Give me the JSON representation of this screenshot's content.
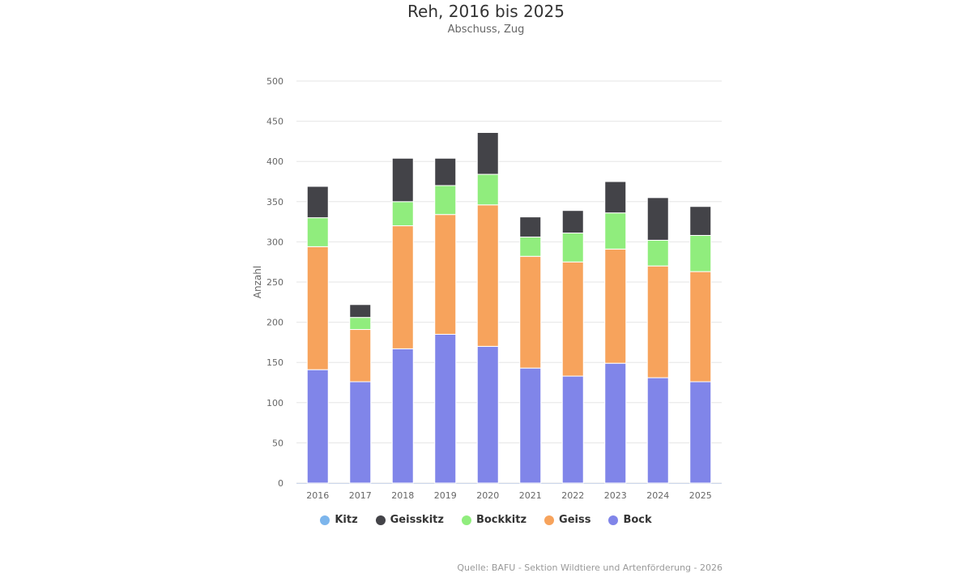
{
  "chart_data": {
    "type": "bar",
    "stacked": true,
    "title": "Reh, 2016 bis 2025",
    "subtitle": "Abschuss, Zug",
    "ylabel": "Anzahl",
    "xlabel": "",
    "ylim": [
      0,
      500
    ],
    "yticks": [
      0,
      50,
      100,
      150,
      200,
      250,
      300,
      350,
      400,
      450,
      500
    ],
    "grid": true,
    "legend_position": "bottom",
    "categories": [
      "2016",
      "2017",
      "2018",
      "2019",
      "2020",
      "2021",
      "2022",
      "2023",
      "2024",
      "2025"
    ],
    "series": [
      {
        "name": "Bock",
        "color": "#8085e9",
        "values": [
          141,
          126,
          167,
          185,
          170,
          143,
          133,
          149,
          131,
          126
        ]
      },
      {
        "name": "Geiss",
        "color": "#f7a35c",
        "values": [
          153,
          65,
          153,
          149,
          176,
          139,
          142,
          142,
          139,
          137
        ]
      },
      {
        "name": "Bockkitz",
        "color": "#90ed7d",
        "values": [
          36,
          15,
          30,
          36,
          38,
          24,
          36,
          45,
          32,
          45
        ]
      },
      {
        "name": "Geisskitz",
        "color": "#434348",
        "values": [
          39,
          16,
          54,
          34,
          52,
          25,
          28,
          39,
          53,
          36
        ]
      },
      {
        "name": "Kitz",
        "color": "#7cb5ec",
        "values": [
          0,
          0,
          0,
          0,
          0,
          0,
          0,
          0,
          0,
          0
        ]
      }
    ],
    "legend_order": [
      "Kitz",
      "Geisskitz",
      "Bockkitz",
      "Geiss",
      "Bock"
    ]
  },
  "source": "Quelle: BAFU - Sektion Wildtiere und Artenförderung - 2026"
}
